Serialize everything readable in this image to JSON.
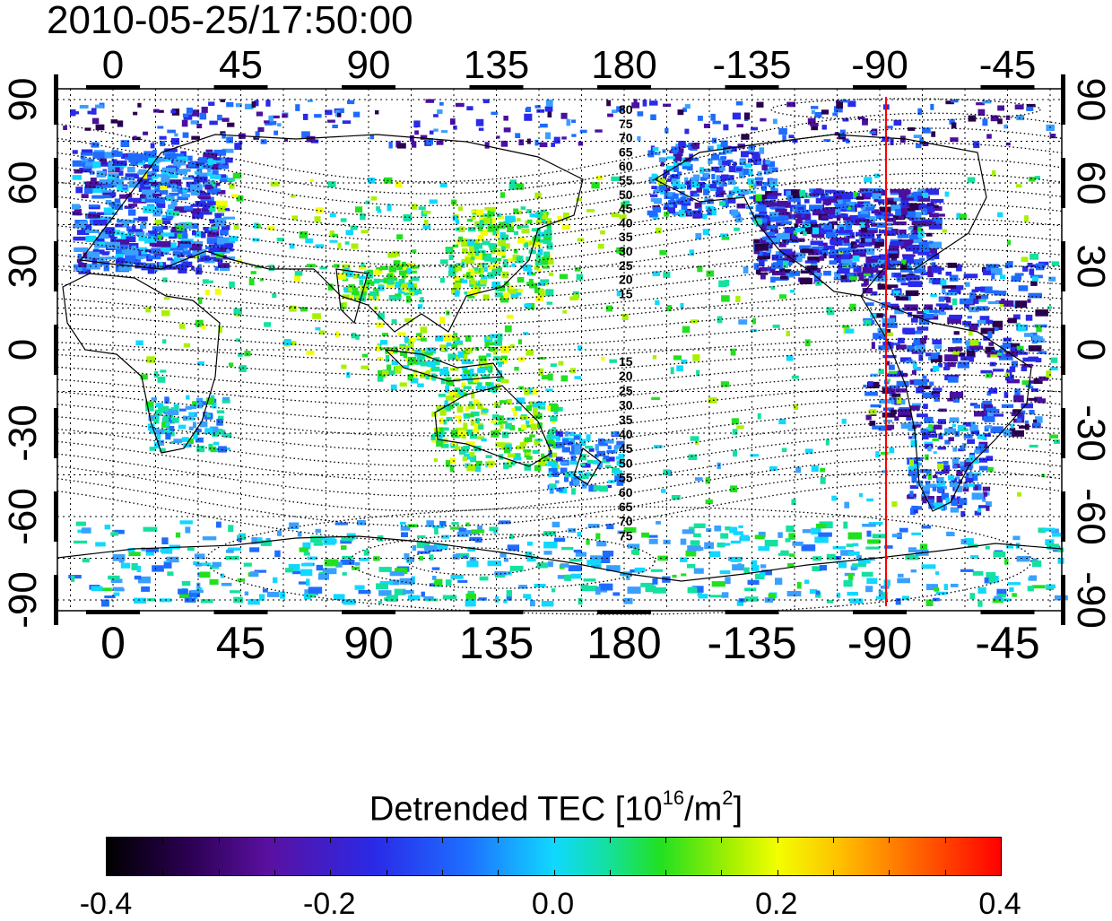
{
  "timestamp": "2010-05-25/17:50:00",
  "map": {
    "projection": "equirectangular, centered on 180",
    "lon_ticks": [
      "0",
      "45",
      "90",
      "135",
      "180",
      "-135",
      "-90",
      "-45"
    ],
    "lat_ticks": [
      "90",
      "60",
      "30",
      "0",
      "-30",
      "-60",
      "-90"
    ],
    "contour_labels_north": [
      "80",
      "75",
      "70",
      "65",
      "60",
      "55",
      "50",
      "45",
      "40",
      "35",
      "30",
      "25",
      "20",
      "15"
    ],
    "contour_labels_south": [
      "15",
      "20",
      "25",
      "30",
      "35",
      "40",
      "45",
      "50",
      "55",
      "60",
      "65",
      "70",
      "75"
    ],
    "marker_line_lon": -90,
    "marker_line_color": "#ff0000"
  },
  "colorbar": {
    "title_main": "Detrended TEC  [10",
    "title_exp": "16",
    "title_unit": "/m",
    "title_unit_exp": "2",
    "title_end": "]",
    "min": -0.4,
    "max": 0.4,
    "tick_labels": [
      "-0.4",
      "-0.2",
      "0.0",
      "0.2",
      "0.4"
    ]
  },
  "chart_data": {
    "type": "heatmap",
    "title": "2010-05-25/17:50:00",
    "colorbar_label": "Detrended TEC [10^16/m^2]",
    "value_range": [
      -0.4,
      0.4
    ],
    "x_ticks": [
      "0",
      "45",
      "90",
      "135",
      "180",
      "-135",
      "-90",
      "-45"
    ],
    "y_ticks": [
      "90",
      "60",
      "30",
      "0",
      "-30",
      "-60",
      "-90"
    ]
  }
}
